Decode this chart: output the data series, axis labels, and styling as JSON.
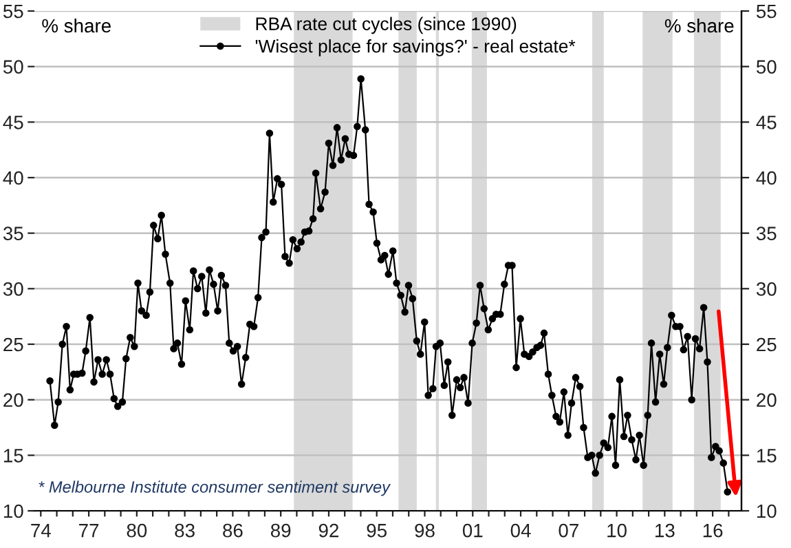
{
  "chart_data": {
    "type": "line",
    "ylabel": "% share",
    "y2label": "% share",
    "x": [
      1974.57,
      1974.86,
      1975.09,
      1975.35,
      1975.6,
      1975.83,
      1976.06,
      1976.29,
      1976.58,
      1976.81,
      1977.07,
      1977.32,
      1977.58,
      1977.84,
      1978.1,
      1978.33,
      1978.58,
      1978.81,
      1979.1,
      1979.33,
      1979.59,
      1979.85,
      1980.07,
      1980.3,
      1980.59,
      1980.82,
      1981.05,
      1981.31,
      1981.54,
      1981.79,
      1982.08,
      1982.31,
      1982.54,
      1982.8,
      1983.05,
      1983.31,
      1983.54,
      1983.8,
      1984.06,
      1984.32,
      1984.54,
      1984.8,
      1985.06,
      1985.29,
      1985.55,
      1985.78,
      1986.03,
      1986.29,
      1986.55,
      1986.81,
      1987.07,
      1987.32,
      1987.58,
      1987.81,
      1988.07,
      1988.3,
      1988.53,
      1988.79,
      1989.04,
      1989.27,
      1989.53,
      1989.76,
      1990.02,
      1990.27,
      1990.5,
      1990.76,
      1991.02,
      1991.19,
      1991.49,
      1991.77,
      1992.0,
      1992.26,
      1992.52,
      1992.77,
      1993.03,
      1993.26,
      1993.55,
      1993.78,
      1994.01,
      1994.29,
      1994.52,
      1994.78,
      1995.01,
      1995.27,
      1995.5,
      1995.73,
      1996.01,
      1996.24,
      1996.5,
      1996.76,
      1996.99,
      1997.24,
      1997.5,
      1997.73,
      1997.99,
      1998.22,
      1998.51,
      1998.71,
      1998.96,
      1999.22,
      1999.45,
      1999.71,
      2000.0,
      2000.22,
      2000.45,
      2000.71,
      2000.97,
      2001.23,
      2001.46,
      2001.71,
      2001.97,
      2002.23,
      2002.46,
      2002.72,
      2002.98,
      2003.23,
      2003.46,
      2003.72,
      2003.98,
      2004.23,
      2004.52,
      2004.75,
      2005.01,
      2005.24,
      2005.46,
      2005.72,
      2005.95,
      2006.21,
      2006.44,
      2006.7,
      2006.95,
      2007.18,
      2007.44,
      2007.7,
      2007.93,
      2008.19,
      2008.44,
      2008.67,
      2008.93,
      2009.19,
      2009.45,
      2009.7,
      2009.93,
      2010.19,
      2010.45,
      2010.68,
      2010.94,
      2011.2,
      2011.42,
      2011.68,
      2011.94,
      2012.17,
      2012.43,
      2012.69,
      2012.94,
      2013.17,
      2013.43,
      2013.69,
      2013.95,
      2014.18,
      2014.43,
      2014.69,
      2014.92,
      2015.18,
      2015.44,
      2015.67,
      2015.92,
      2016.18,
      2016.41,
      2016.67,
      2016.93
    ],
    "series": [
      {
        "name": "'Wisest place for savings?' - real estate*",
        "color": "#000000",
        "values": [
          21.7,
          17.7,
          19.8,
          25.0,
          26.6,
          20.9,
          22.3,
          22.3,
          22.4,
          24.4,
          27.4,
          21.6,
          23.6,
          22.3,
          23.6,
          22.3,
          20.1,
          19.4,
          19.8,
          23.7,
          25.6,
          24.8,
          30.5,
          28.0,
          27.6,
          29.7,
          35.7,
          34.5,
          36.6,
          33.1,
          30.5,
          24.6,
          25.1,
          23.2,
          28.9,
          26.3,
          31.6,
          30.0,
          31.1,
          27.8,
          31.7,
          30.4,
          28.0,
          31.2,
          30.3,
          25.1,
          24.4,
          24.8,
          21.4,
          23.8,
          26.8,
          26.6,
          29.2,
          34.6,
          35.1,
          44.0,
          37.8,
          39.9,
          39.4,
          32.9,
          32.3,
          34.4,
          33.6,
          34.2,
          35.1,
          35.2,
          36.3,
          40.4,
          37.2,
          38.7,
          43.1,
          41.1,
          44.5,
          41.6,
          43.5,
          42.1,
          42.0,
          44.6,
          48.9,
          44.3,
          37.6,
          36.9,
          34.1,
          32.6,
          33.0,
          31.3,
          33.4,
          30.5,
          29.4,
          27.9,
          30.3,
          29.1,
          25.3,
          24.1,
          27.0,
          20.4,
          21.0,
          24.8,
          25.1,
          21.3,
          23.4,
          18.6,
          21.8,
          21.1,
          22.0,
          19.7,
          25.1,
          26.9,
          30.3,
          28.2,
          26.3,
          27.3,
          27.7,
          27.7,
          30.4,
          32.1,
          32.1,
          22.9,
          27.3,
          24.1,
          23.9,
          24.3,
          24.7,
          24.9,
          26.0,
          22.3,
          20.4,
          18.5,
          18.0,
          20.7,
          16.8,
          19.7,
          22.0,
          21.2,
          17.5,
          14.8,
          15.0,
          13.4,
          15.0,
          16.1,
          15.7,
          18.5,
          14.1,
          21.8,
          16.7,
          18.6,
          16.4,
          14.6,
          16.8,
          14.1,
          18.6,
          25.1,
          19.8,
          24.1,
          21.4,
          24.7,
          27.6,
          26.6,
          26.6,
          24.5,
          25.7,
          20.0,
          25.5,
          24.6,
          28.3,
          23.4,
          14.8,
          15.8,
          15.4,
          14.3,
          11.7
        ]
      }
    ],
    "bands": [
      {
        "axis": "x",
        "from": 1989.82,
        "to": 1993.49,
        "label": "RBA rate cut cycles (since 1990)",
        "color": "#d9d9d9"
      },
      {
        "axis": "x",
        "from": 1996.36,
        "to": 1997.5,
        "color": "#d9d9d9"
      },
      {
        "axis": "x",
        "from": 1998.7,
        "to": 1998.88,
        "color": "#d9d9d9"
      },
      {
        "axis": "x",
        "from": 2000.94,
        "to": 2001.89,
        "color": "#d9d9d9"
      },
      {
        "axis": "x",
        "from": 2008.47,
        "to": 2009.19,
        "color": "#d9d9d9"
      },
      {
        "axis": "x",
        "from": 2011.62,
        "to": 2013.49,
        "color": "#d9d9d9"
      },
      {
        "axis": "x",
        "from": 2014.83,
        "to": 2016.5,
        "color": "#d9d9d9"
      }
    ],
    "xlim": [
      1973.6,
      2017.8
    ],
    "xticks": [
      {
        "value": 1974,
        "label": "74"
      },
      {
        "value": 1975,
        "label": null
      },
      {
        "value": 1976,
        "label": null
      },
      {
        "value": 1977,
        "label": "77"
      },
      {
        "value": 1978,
        "label": null
      },
      {
        "value": 1979,
        "label": null
      },
      {
        "value": 1980,
        "label": "80"
      },
      {
        "value": 1981,
        "label": null
      },
      {
        "value": 1982,
        "label": null
      },
      {
        "value": 1983,
        "label": "83"
      },
      {
        "value": 1984,
        "label": null
      },
      {
        "value": 1985,
        "label": null
      },
      {
        "value": 1986,
        "label": "86"
      },
      {
        "value": 1987,
        "label": null
      },
      {
        "value": 1988,
        "label": null
      },
      {
        "value": 1989,
        "label": "89"
      },
      {
        "value": 1990,
        "label": null
      },
      {
        "value": 1991,
        "label": null
      },
      {
        "value": 1992,
        "label": "92"
      },
      {
        "value": 1993,
        "label": null
      },
      {
        "value": 1994,
        "label": null
      },
      {
        "value": 1995,
        "label": "95"
      },
      {
        "value": 1996,
        "label": null
      },
      {
        "value": 1997,
        "label": null
      },
      {
        "value": 1998,
        "label": "98"
      },
      {
        "value": 1999,
        "label": null
      },
      {
        "value": 2000,
        "label": null
      },
      {
        "value": 2001,
        "label": "01"
      },
      {
        "value": 2002,
        "label": null
      },
      {
        "value": 2003,
        "label": null
      },
      {
        "value": 2004,
        "label": "04"
      },
      {
        "value": 2005,
        "label": null
      },
      {
        "value": 2006,
        "label": null
      },
      {
        "value": 2007,
        "label": "07"
      },
      {
        "value": 2008,
        "label": null
      },
      {
        "value": 2009,
        "label": null
      },
      {
        "value": 2010,
        "label": "10"
      },
      {
        "value": 2011,
        "label": null
      },
      {
        "value": 2012,
        "label": null
      },
      {
        "value": 2013,
        "label": "13"
      },
      {
        "value": 2014,
        "label": null
      },
      {
        "value": 2015,
        "label": null
      },
      {
        "value": 2016,
        "label": "16"
      },
      {
        "value": 2017,
        "label": null
      }
    ],
    "ylim": [
      10,
      55
    ],
    "yticks": [
      10,
      15,
      20,
      25,
      30,
      35,
      40,
      45,
      50,
      55
    ],
    "y2lim": [
      10,
      55
    ],
    "y2ticks": [
      10,
      15,
      20,
      25,
      30,
      35,
      40,
      45,
      50,
      55
    ],
    "grid": "y",
    "legend": "top",
    "marker": "circle",
    "line_style": "solid",
    "annotations": [
      "* Melbourne Institute consumer sentiment survey"
    ]
  }
}
